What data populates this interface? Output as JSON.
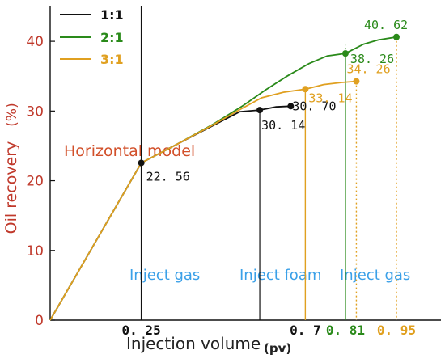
{
  "chart_data": {
    "type": "line",
    "xlabel": "Injection volume",
    "xlabel_unit": "(pv)",
    "ylabel": "Oil recovery",
    "ylabel_unit": "(%)",
    "model_label": "Horizontal model",
    "ylim": [
      0,
      45
    ],
    "xlim": [
      0,
      1.0
    ],
    "yticks": [
      "0",
      "10",
      "20",
      "30",
      "40"
    ],
    "xticks": [
      {
        "value": 0.25,
        "label": "0. 25",
        "color": "#111111"
      },
      {
        "value": 0.7,
        "label": "0. 7",
        "color": "#111111"
      },
      {
        "value": 0.81,
        "label": "0. 81",
        "color": "#2a8a1a"
      },
      {
        "value": 0.95,
        "label": "0. 95",
        "color": "#e0a020"
      }
    ],
    "region_labels": [
      "Inject gas",
      "Inject foam",
      "Inject gas"
    ],
    "legend_position": "top-left",
    "series": [
      {
        "name": "1:1",
        "color": "#111111",
        "points": [
          [
            0,
            0
          ],
          [
            0.25,
            22.56
          ],
          [
            0.35,
            25.3
          ],
          [
            0.45,
            28.0
          ],
          [
            0.52,
            29.9
          ],
          [
            0.575,
            30.14
          ],
          [
            0.62,
            30.6
          ],
          [
            0.66,
            30.7
          ]
        ],
        "end_x": 0.66,
        "markers": [
          {
            "x": 0.25,
            "y": 22.56,
            "label": "22. 56"
          },
          {
            "x": 0.575,
            "y": 30.14,
            "label": "30. 14"
          },
          {
            "x": 0.66,
            "y": 30.7,
            "label": "30. 70"
          }
        ]
      },
      {
        "name": "2:1",
        "color": "#2a8a1a",
        "points": [
          [
            0,
            0
          ],
          [
            0.25,
            22.56
          ],
          [
            0.35,
            25.3
          ],
          [
            0.45,
            28.2
          ],
          [
            0.53,
            30.8
          ],
          [
            0.59,
            33.0
          ],
          [
            0.65,
            35.0
          ],
          [
            0.71,
            36.8
          ],
          [
            0.76,
            37.9
          ],
          [
            0.81,
            38.26
          ],
          [
            0.86,
            39.6
          ],
          [
            0.9,
            40.2
          ],
          [
            0.95,
            40.62
          ]
        ],
        "end_x": 0.95,
        "markers": [
          {
            "x": 0.81,
            "y": 38.26,
            "label": "38. 26"
          },
          {
            "x": 0.95,
            "y": 40.62,
            "label": "40. 62"
          }
        ]
      },
      {
        "name": "3:1",
        "color": "#e0a020",
        "points": [
          [
            0,
            0
          ],
          [
            0.25,
            22.56
          ],
          [
            0.35,
            25.3
          ],
          [
            0.45,
            28.1
          ],
          [
            0.52,
            30.2
          ],
          [
            0.58,
            31.9
          ],
          [
            0.64,
            32.7
          ],
          [
            0.7,
            33.14
          ],
          [
            0.75,
            33.8
          ],
          [
            0.8,
            34.1
          ],
          [
            0.84,
            34.26
          ]
        ],
        "end_x": 0.84,
        "markers": [
          {
            "x": 0.7,
            "y": 33.14,
            "label": "33. 14"
          },
          {
            "x": 0.84,
            "y": 34.26,
            "label": "34. 26"
          }
        ]
      }
    ]
  }
}
